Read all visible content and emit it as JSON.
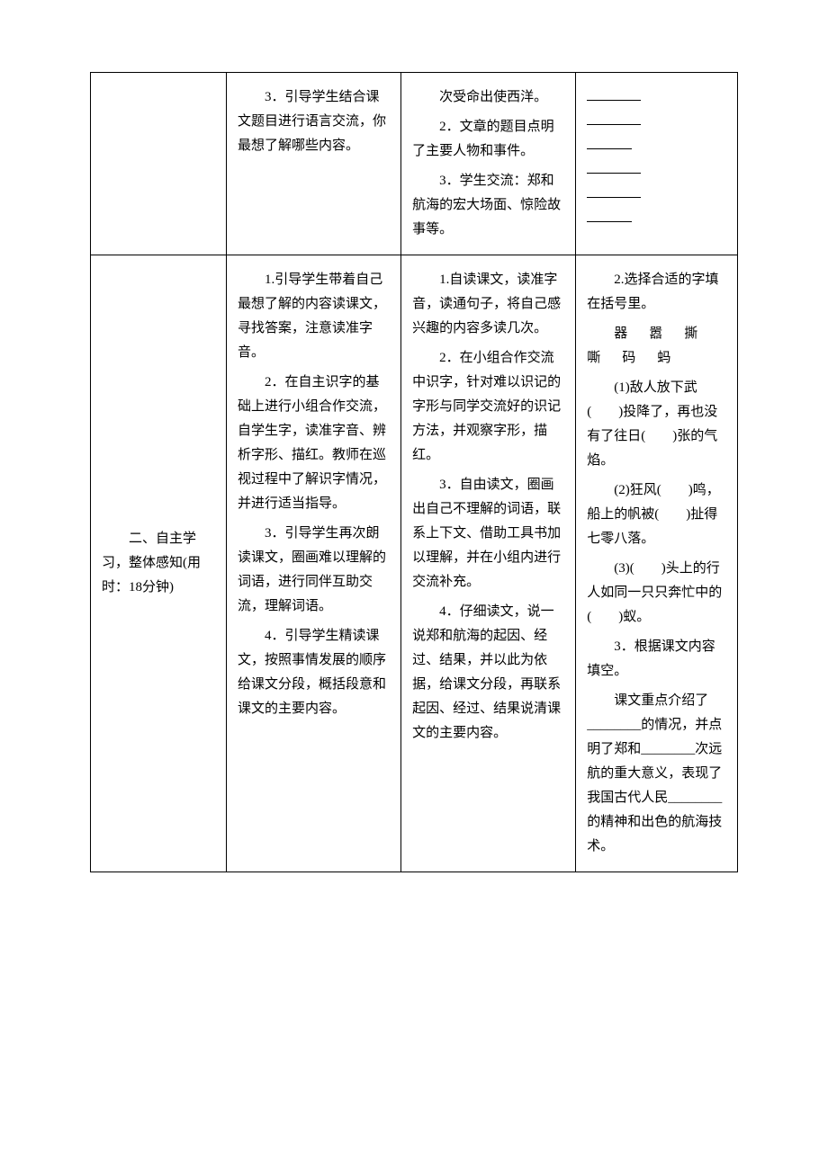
{
  "table": {
    "border_color": "#000000",
    "background_color": "#ffffff",
    "text_color": "#000000",
    "font_family": "SimSun",
    "font_size": 15,
    "line_height": 1.8,
    "column_widths_pct": [
      21,
      27,
      27,
      25
    ],
    "rows": [
      {
        "col1": "",
        "col2": {
          "paras": [
            "3．引导学生结合课文题目进行语言交流，你最想了解哪些内容。"
          ]
        },
        "col3": {
          "paras": [
            "次受命出使西洋。",
            "2．文章的题目点明了主要人物和事件。",
            "3．学生交流：郑和航海的宏大场面、惊险故事等。"
          ]
        },
        "col4": {
          "blank_lines": 6
        }
      },
      {
        "col1": "二、自主学习，整体感知(用时：18分钟)",
        "col2": {
          "paras": [
            "1.引导学生带着自己最想了解的内容读课文，寻找答案，注意读准字音。",
            "2．在自主识字的基础上进行小组合作交流，自学生字，读准字音、辨析字形、描红。教师在巡视过程中了解识字情况，并进行适当指导。",
            "3．引导学生再次朗读课文，圈画难以理解的词语，进行同伴互助交流，理解词语。",
            "4．引导学生精读课文，按照事情发展的顺序给课文分段，概括段意和课文的主要内容。"
          ]
        },
        "col3": {
          "paras": [
            "1.自读课文，读准字音，读通句子，将自己感兴趣的内容多读几次。",
            "2．在小组合作交流中识字，针对难以识记的字形与同学交流好的识记方法，并观察字形，描红。",
            "3．自由读文，圈画出自己不理解的词语，联系上下文、借助工具书加以理解，并在小组内进行交流补充。",
            "4．仔细读文，说一说郑和航海的起因、经过、结果，并以此为依据，给课文分段，再联系起因、经过、结果说清课文的主要内容。"
          ]
        },
        "col4": {
          "title": "2.选择合适的字填在括号里。",
          "char_list": "器　嚣　撕　嘶　码　蚂",
          "items": [
            "(1)敌人放下武(　　)投降了，再也没有了往日(　　)张的气焰。",
            "(2)狂风(　　)鸣，船上的帆被(　　)扯得七零八落。",
            "(3)(　　)头上的行人如同一只只奔忙中的(　　)蚁。"
          ],
          "fill": {
            "title": "3．根据课文内容填空。",
            "text": "课文重点介绍了________的情况，并点明了郑和________次远航的重大意义，表现了我国古代人民________的精神和出色的航海技术。"
          }
        }
      }
    ]
  }
}
